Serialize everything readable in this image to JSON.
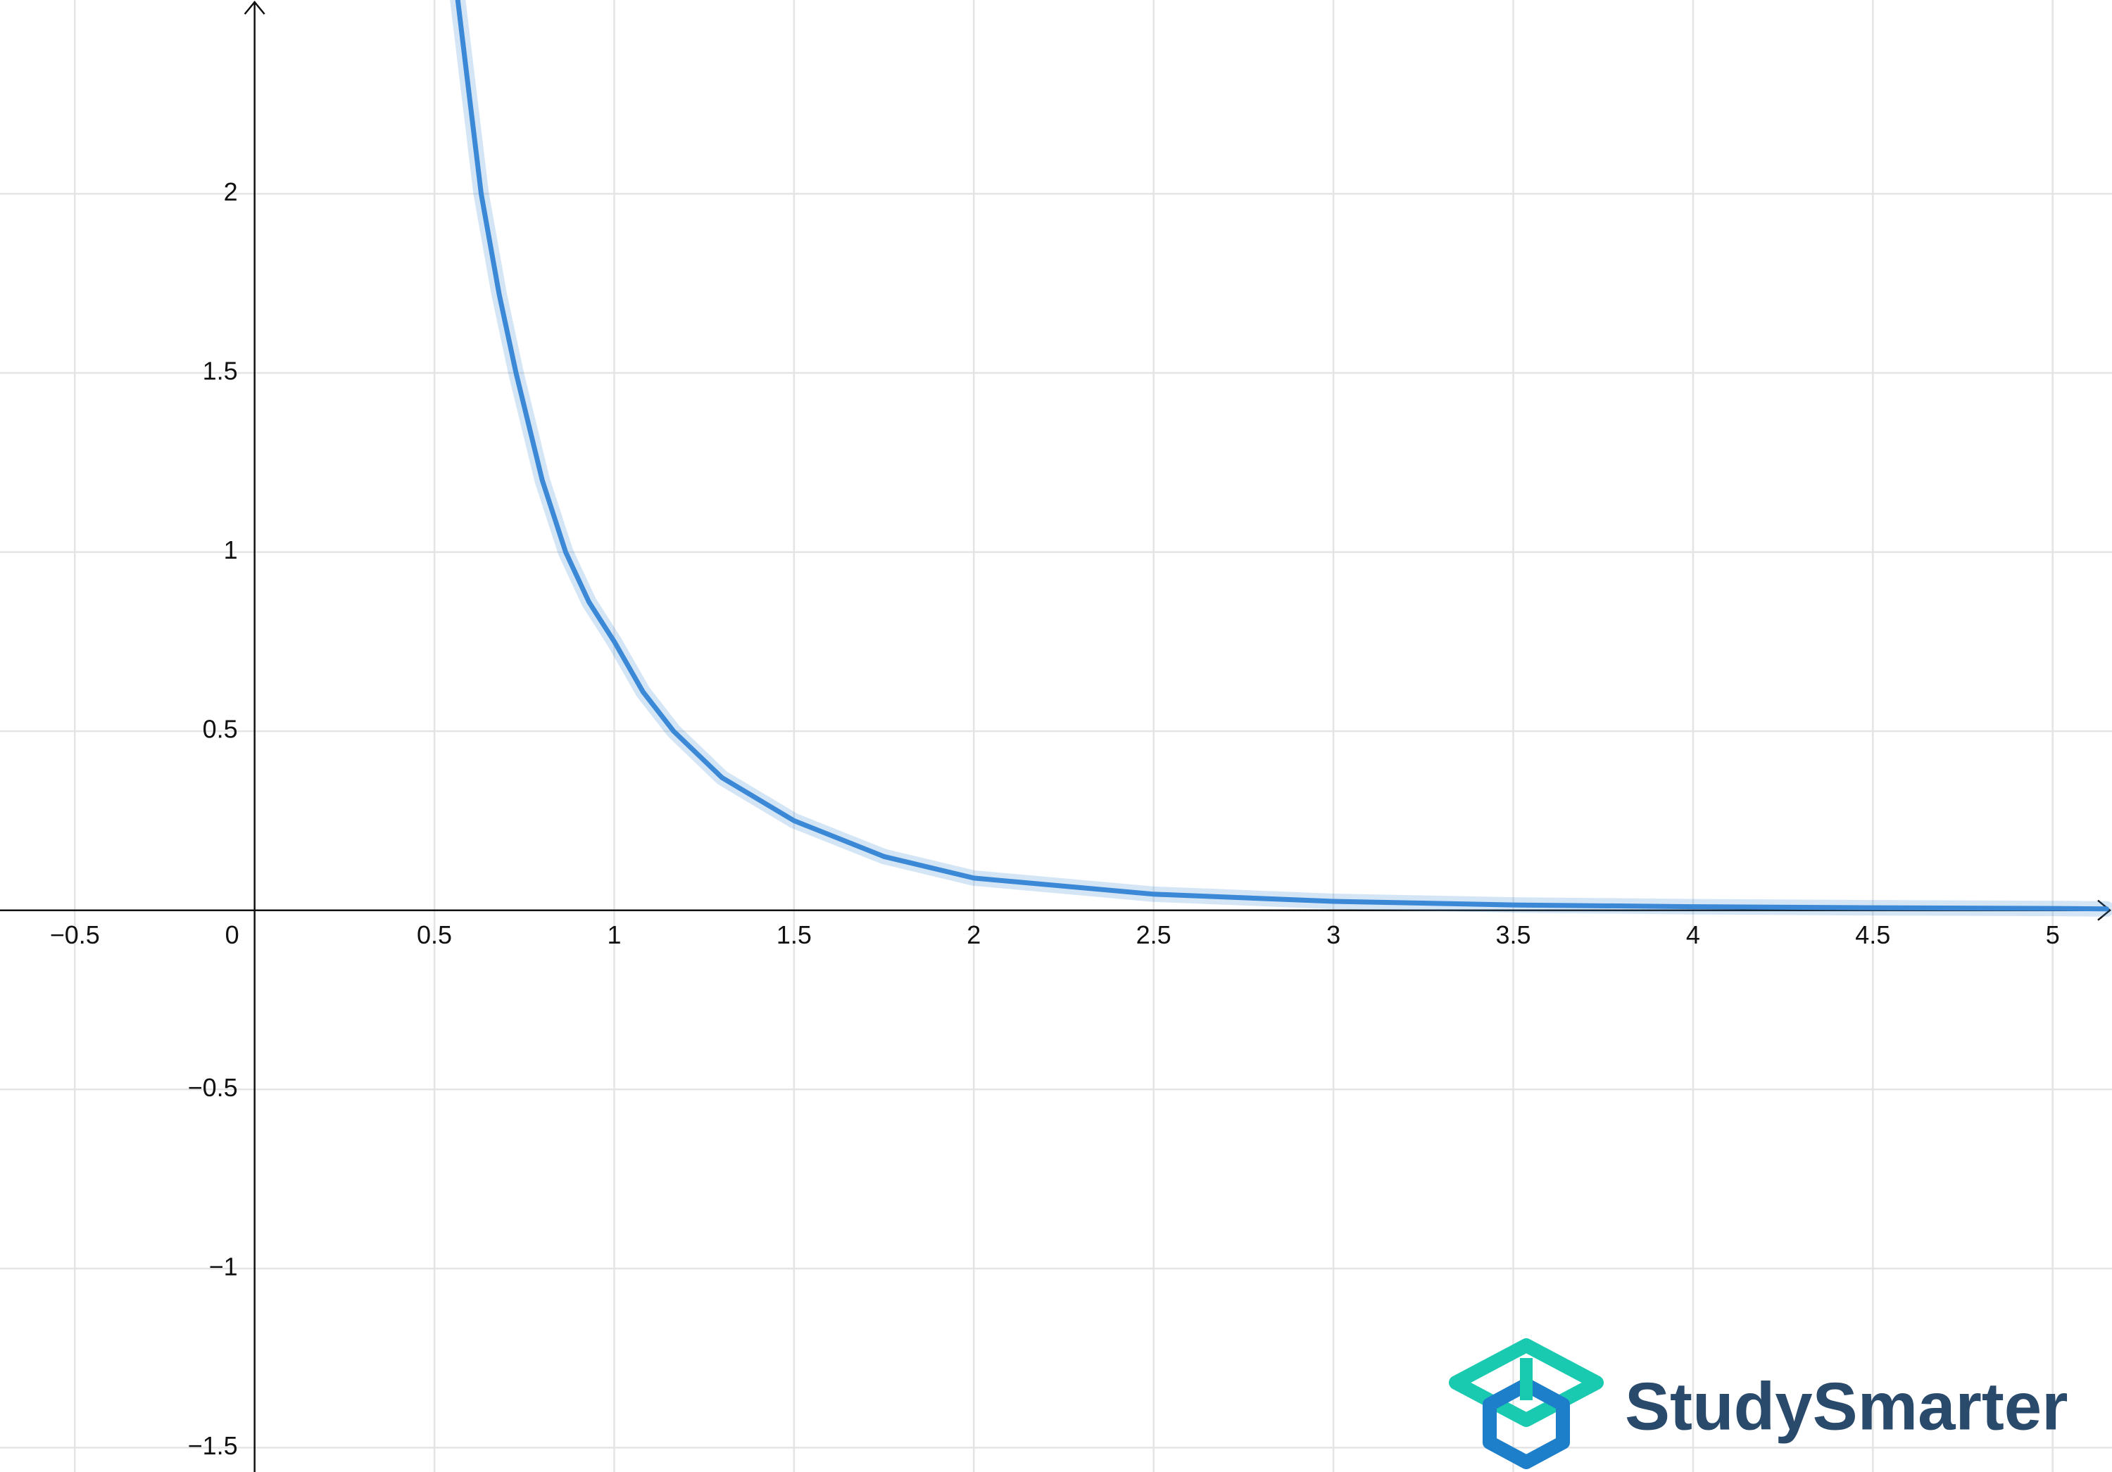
{
  "chart_data": {
    "type": "line",
    "x": [
      0.565,
      0.6,
      0.63,
      0.68,
      0.727,
      0.8,
      0.865,
      0.93,
      1.0,
      1.08,
      1.165,
      1.3,
      1.5,
      1.75,
      2.0,
      2.5,
      3.0,
      3.5,
      4.0,
      4.5,
      5.0,
      5.15
    ],
    "values": [
      2.54,
      2.25,
      2.0,
      1.72,
      1.5,
      1.2,
      1.0,
      0.86,
      0.75,
      0.61,
      0.5,
      0.37,
      0.25,
      0.15,
      0.09,
      0.045,
      0.025,
      0.015,
      0.01,
      0.007,
      0.005,
      0.004
    ],
    "color": "#3a88d6",
    "xlim": [
      -0.708,
      5.165
    ],
    "ylim": [
      -1.568,
      2.541
    ],
    "xticks": [
      {
        "value": -0.5,
        "label": "−0.5"
      },
      0,
      0.5,
      1,
      1.5,
      2,
      2.5,
      3,
      3.5,
      4,
      4.5,
      5
    ],
    "yticks": [
      {
        "value": -1.5,
        "label": "−1.5"
      },
      {
        "value": -1,
        "label": "−1"
      },
      {
        "value": -0.5,
        "label": "−0.5"
      },
      0.5,
      1,
      1.5,
      2
    ],
    "grid": true,
    "watermark": "StudySmarter"
  }
}
